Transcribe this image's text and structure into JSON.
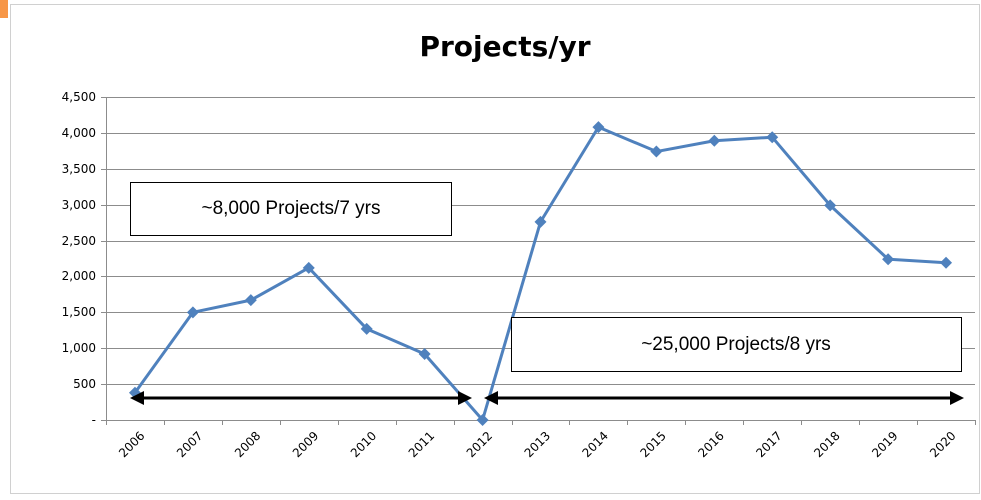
{
  "chart_data": {
    "type": "line",
    "title": "Projects/yr",
    "categories": [
      "2006",
      "2007",
      "2008",
      "2009",
      "2010",
      "2011",
      "2012",
      "2013",
      "2014",
      "2015",
      "2016",
      "2017",
      "2018",
      "2019",
      "2020"
    ],
    "values": [
      380,
      1500,
      1670,
      2120,
      1270,
      920,
      0,
      2760,
      4080,
      3740,
      3890,
      3940,
      2990,
      2240,
      2190
    ],
    "color": "#4f81bd",
    "ylim": [
      0,
      4500
    ],
    "yticks": [
      {
        "value": 0,
        "label": "-"
      },
      500,
      {
        "value": 1000,
        "label": "1,000"
      },
      {
        "value": 1500,
        "label": "1,500"
      },
      {
        "value": 2000,
        "label": "2,000"
      },
      {
        "value": 2500,
        "label": "2,500"
      },
      {
        "value": 3000,
        "label": "3,000"
      },
      {
        "value": 3500,
        "label": "3,500"
      },
      {
        "value": 4000,
        "label": "4,000"
      },
      {
        "value": 4500,
        "label": "4,500"
      }
    ],
    "grid": true,
    "annotations": [
      "~8,000 Projects/7 yrs",
      "~25,000 Projects/8 yrs"
    ]
  }
}
